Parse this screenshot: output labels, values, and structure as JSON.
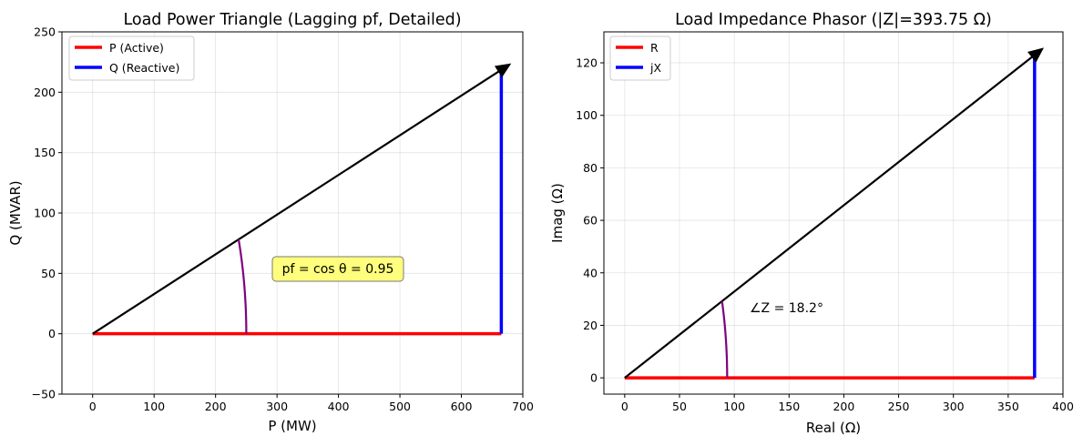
{
  "chart_data": [
    {
      "type": "line",
      "title": "Load Power Triangle (Lagging pf, Detailed)",
      "xlabel": "P (MW)",
      "ylabel": "Q (MVAR)",
      "xlim": [
        -50,
        700
      ],
      "ylim": [
        -50,
        250
      ],
      "xticks": [
        0,
        100,
        200,
        300,
        400,
        500,
        600,
        700
      ],
      "yticks": [
        -50,
        0,
        50,
        100,
        150,
        200,
        250
      ],
      "xtick_labels": [
        "0",
        "100",
        "200",
        "300",
        "400",
        "500",
        "600",
        "700"
      ],
      "ytick_labels": [
        "−50",
        "0",
        "50",
        "100",
        "150",
        "200",
        "250"
      ],
      "grid": true,
      "legend_position": "top-left",
      "series": [
        {
          "name": "P (Active)",
          "color": "#ff0000",
          "x": [
            0,
            665
          ],
          "y": [
            0,
            0
          ]
        },
        {
          "name": "Q (Reactive)",
          "color": "#0000ff",
          "x": [
            665,
            665
          ],
          "y": [
            0,
            218.6
          ]
        }
      ],
      "vector": {
        "color": "#000000",
        "from": [
          0,
          0
        ],
        "to": [
          665,
          218.6
        ]
      },
      "angle_arc": {
        "color": "#800080",
        "radius": 250,
        "angle_deg": 18.2
      },
      "annotation": {
        "text": "pf = cos θ = 0.95",
        "x": 300,
        "y": 50,
        "box_color": "#ffff66"
      }
    },
    {
      "type": "line",
      "title": "Load Impedance Phasor (|Z|=393.75 Ω)",
      "xlabel": "Real (Ω)",
      "ylabel": "Imag (Ω)",
      "xlim": [
        -19,
        400
      ],
      "ylim": [
        -6.2,
        131.8
      ],
      "xticks": [
        0,
        50,
        100,
        150,
        200,
        250,
        300,
        350,
        400
      ],
      "yticks": [
        0,
        20,
        40,
        60,
        80,
        100,
        120
      ],
      "xtick_labels": [
        "0",
        "50",
        "100",
        "150",
        "200",
        "250",
        "300",
        "350",
        "400"
      ],
      "ytick_labels": [
        "0",
        "20",
        "40",
        "60",
        "80",
        "100",
        "120"
      ],
      "grid": true,
      "legend_position": "top-left",
      "series": [
        {
          "name": "R",
          "color": "#ff0000",
          "x": [
            0,
            374.1
          ],
          "y": [
            0,
            0
          ]
        },
        {
          "name": "jX",
          "color": "#0000ff",
          "x": [
            374.1,
            374.1
          ],
          "y": [
            0,
            123
          ]
        }
      ],
      "vector": {
        "color": "#000000",
        "from": [
          0,
          0
        ],
        "to": [
          374.1,
          123
        ]
      },
      "angle_arc": {
        "color": "#800080",
        "radius": 93.5,
        "angle_deg": 18.2
      },
      "annotation": {
        "text": "∠Z = 18.2°",
        "x": 115,
        "y": 24
      }
    }
  ]
}
